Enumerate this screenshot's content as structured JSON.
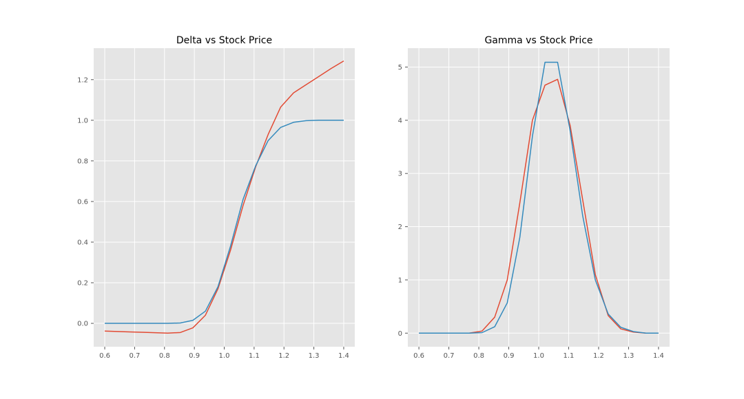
{
  "chart_data": [
    {
      "type": "line",
      "title": "Delta vs Stock Price",
      "xlabel": "",
      "ylabel": "",
      "xlim": [
        0.563,
        1.437
      ],
      "ylim": [
        -0.115,
        1.355
      ],
      "xticks": [
        0.6,
        0.7,
        0.8,
        0.9,
        1.0,
        1.1,
        1.2,
        1.3,
        1.4
      ],
      "xtick_labels": [
        "0.6",
        "0.7",
        "0.8",
        "0.9",
        "1.0",
        "1.1",
        "1.2",
        "1.3",
        "1.4"
      ],
      "yticks": [
        0.0,
        0.2,
        0.4,
        0.6,
        0.8,
        1.0,
        1.2
      ],
      "ytick_labels": [
        "0.0",
        "0.2",
        "0.4",
        "0.6",
        "0.8",
        "1.0",
        "1.2"
      ],
      "grid": true,
      "x": [
        0.6,
        0.642,
        0.684,
        0.726,
        0.768,
        0.811,
        0.853,
        0.895,
        0.937,
        0.979,
        1.021,
        1.063,
        1.105,
        1.147,
        1.189,
        1.232,
        1.274,
        1.316,
        1.358,
        1.4
      ],
      "series": [
        {
          "color": "#e24a33",
          "values": [
            -0.038,
            -0.04,
            -0.042,
            -0.044,
            -0.046,
            -0.048,
            -0.045,
            -0.022,
            0.04,
            0.17,
            0.36,
            0.58,
            0.77,
            0.93,
            1.065,
            1.135,
            1.175,
            1.215,
            1.255,
            1.292
          ]
        },
        {
          "color": "#348abd",
          "values": [
            0.0,
            0.0,
            0.0,
            0.0,
            0.0,
            0.0,
            0.002,
            0.015,
            0.06,
            0.18,
            0.38,
            0.61,
            0.775,
            0.9,
            0.965,
            0.99,
            0.998,
            1.0,
            1.0,
            1.0
          ]
        }
      ]
    },
    {
      "type": "line",
      "title": "Gamma vs Stock Price",
      "xlabel": "",
      "ylabel": "",
      "xlim": [
        0.563,
        1.437
      ],
      "ylim": [
        -0.255,
        5.355
      ],
      "xticks": [
        0.6,
        0.7,
        0.8,
        0.9,
        1.0,
        1.1,
        1.2,
        1.3,
        1.4
      ],
      "xtick_labels": [
        "0.6",
        "0.7",
        "0.8",
        "0.9",
        "1.0",
        "1.1",
        "1.2",
        "1.3",
        "1.4"
      ],
      "yticks": [
        0,
        1,
        2,
        3,
        4,
        5
      ],
      "ytick_labels": [
        "0",
        "1",
        "2",
        "3",
        "4",
        "5"
      ],
      "grid": true,
      "x": [
        0.6,
        0.642,
        0.684,
        0.726,
        0.768,
        0.811,
        0.853,
        0.895,
        0.937,
        0.979,
        1.021,
        1.063,
        1.105,
        1.147,
        1.189,
        1.232,
        1.274,
        1.316,
        1.358,
        1.4
      ],
      "series": [
        {
          "color": "#e24a33",
          "values": [
            0.0,
            0.0,
            0.0,
            0.0,
            0.0,
            0.04,
            0.3,
            1.0,
            2.45,
            4.0,
            4.66,
            4.77,
            3.9,
            2.5,
            1.1,
            0.33,
            0.08,
            0.02,
            0.0,
            0.0
          ]
        },
        {
          "color": "#348abd",
          "values": [
            0.0,
            0.0,
            0.0,
            0.0,
            0.0,
            0.01,
            0.12,
            0.57,
            1.8,
            3.7,
            5.09,
            5.09,
            3.8,
            2.2,
            1.0,
            0.36,
            0.11,
            0.03,
            0.0,
            0.0
          ]
        }
      ]
    }
  ]
}
